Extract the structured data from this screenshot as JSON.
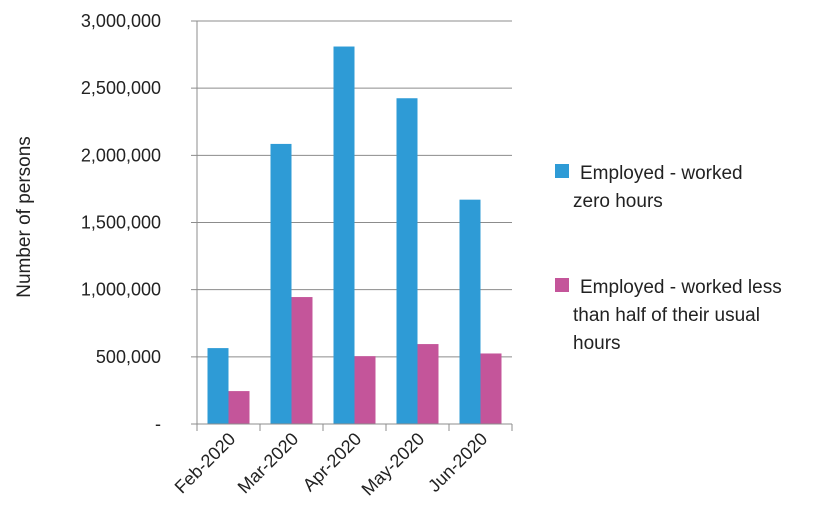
{
  "chart_data": {
    "type": "bar",
    "title": "",
    "xlabel": "",
    "ylabel": "Number of persons",
    "ylim": [
      0,
      3000000
    ],
    "yticks": [
      0,
      500000,
      1000000,
      1500000,
      2000000,
      2500000,
      3000000
    ],
    "ytick_labels": [
      "-",
      "500,000",
      "1,000,000",
      "1,500,000",
      "2,000,000",
      "2,500,000",
      "3,000,000"
    ],
    "grid": true,
    "legend_position": "right",
    "categories": [
      "Feb-2020",
      "Mar-2020",
      "Apr-2020",
      "May-2020",
      "Jun-2020"
    ],
    "series": [
      {
        "name": "Employed - worked zero hours",
        "legend_lines": [
          "Employed - worked",
          "zero hours"
        ],
        "color": "#2e9bd6",
        "values": [
          565000,
          2085000,
          2810000,
          2425000,
          1670000
        ]
      },
      {
        "name": "Employed - worked less than half of their usual hours",
        "legend_lines": [
          "Employed - worked less",
          "than half of their usual",
          "hours"
        ],
        "color": "#c4559a",
        "values": [
          245000,
          945000,
          505000,
          595000,
          525000
        ]
      }
    ]
  }
}
